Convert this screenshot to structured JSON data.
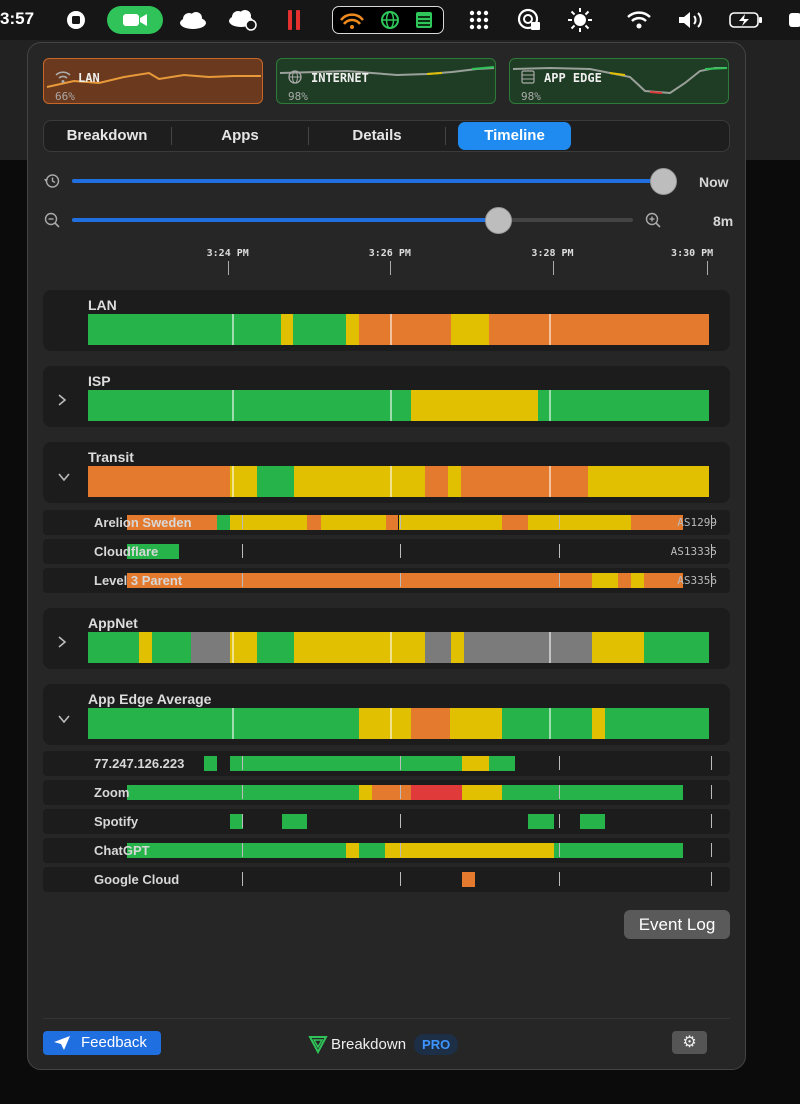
{
  "menubar": {
    "clock": "3:57"
  },
  "cards": [
    {
      "label": "LAN",
      "pct": "66%",
      "bg": "#6b3a1e",
      "border": "#c5672a",
      "icon": "wifi-off-icon"
    },
    {
      "label": "INTERNET",
      "pct": "98%",
      "bg": "#1f3d24",
      "border": "#2e7a3b",
      "icon": "globe-icon"
    },
    {
      "label": "APP EDGE",
      "pct": "98%",
      "bg": "#1f3d24",
      "border": "#2e7a3b",
      "icon": "server-icon"
    }
  ],
  "tabs": [
    "Breakdown",
    "Apps",
    "Details",
    "Timeline"
  ],
  "sliders": {
    "history_label": "Now",
    "zoom_label": "8m",
    "history_position": 0.99,
    "zoom_position": 0.76
  },
  "ticks": [
    "3:24 PM",
    "3:26 PM",
    "3:28 PM",
    "3:30 PM"
  ],
  "colors": {
    "green": "#26b34a",
    "yellow": "#e0c000",
    "orange": "#e47a2e",
    "red": "#e03a3a",
    "gray": "#7b7b7b"
  },
  "sections": [
    {
      "title": "LAN",
      "chevron": "",
      "segments": [
        [
          0,
          0.31,
          "green"
        ],
        [
          0.31,
          0.33,
          "yellow"
        ],
        [
          0.33,
          0.416,
          "green"
        ],
        [
          0.416,
          0.436,
          "yellow"
        ],
        [
          0.436,
          0.584,
          "orange"
        ],
        [
          0.584,
          0.645,
          "yellow"
        ],
        [
          0.645,
          1,
          "orange"
        ]
      ]
    },
    {
      "title": "ISP",
      "chevron": "›",
      "segments": [
        [
          0,
          0.52,
          "green"
        ],
        [
          0.52,
          0.725,
          "yellow"
        ],
        [
          0.725,
          1,
          "green"
        ]
      ]
    },
    {
      "title": "Transit",
      "chevron": "⌄",
      "segments": [
        [
          0,
          0.228,
          "orange"
        ],
        [
          0.228,
          0.272,
          "yellow"
        ],
        [
          0.272,
          0.332,
          "green"
        ],
        [
          0.332,
          0.542,
          "yellow"
        ],
        [
          0.542,
          0.58,
          "orange"
        ],
        [
          0.58,
          0.6,
          "yellow"
        ],
        [
          0.6,
          0.805,
          "orange"
        ],
        [
          0.805,
          1,
          "yellow"
        ]
      ]
    },
    {
      "title": "AppNet",
      "chevron": "›",
      "segments": [
        [
          0,
          0.082,
          "green"
        ],
        [
          0.082,
          0.103,
          "yellow"
        ],
        [
          0.103,
          0.166,
          "green"
        ],
        [
          0.166,
          0.228,
          "gray"
        ],
        [
          0.228,
          0.272,
          "yellow"
        ],
        [
          0.272,
          0.332,
          "green"
        ],
        [
          0.332,
          0.542,
          "yellow"
        ],
        [
          0.542,
          0.584,
          "gray"
        ],
        [
          0.584,
          0.605,
          "yellow"
        ],
        [
          0.605,
          0.812,
          "gray"
        ],
        [
          0.812,
          0.895,
          "yellow"
        ],
        [
          0.895,
          1,
          "green"
        ]
      ]
    },
    {
      "title": "App Edge Average",
      "chevron": "⌄",
      "segments": [
        [
          0,
          0.437,
          "green"
        ],
        [
          0.437,
          0.52,
          "yellow"
        ],
        [
          0.52,
          0.583,
          "orange"
        ],
        [
          0.583,
          0.667,
          "yellow"
        ],
        [
          0.667,
          0.812,
          "green"
        ],
        [
          0.812,
          0.833,
          "yellow"
        ],
        [
          0.833,
          1,
          "green"
        ]
      ]
    }
  ],
  "transit_rows": [
    {
      "name": "Arelion Sweden",
      "as": "AS1299",
      "segments": [
        [
          0.062,
          0.208,
          "orange"
        ],
        [
          0.208,
          0.228,
          "green"
        ],
        [
          0.228,
          0.353,
          "yellow"
        ],
        [
          0.353,
          0.375,
          "orange"
        ],
        [
          0.375,
          0.48,
          "yellow"
        ],
        [
          0.48,
          0.5,
          "orange"
        ],
        [
          0.5,
          0.667,
          "yellow"
        ],
        [
          0.667,
          0.708,
          "orange"
        ],
        [
          0.708,
          0.874,
          "yellow"
        ],
        [
          0.874,
          0.958,
          "orange"
        ]
      ]
    },
    {
      "name": "Cloudflare",
      "as": "AS13335",
      "segments": [
        [
          0.062,
          0.146,
          "green"
        ]
      ]
    },
    {
      "name": "Level 3 Parent",
      "as": "AS3356",
      "segments": [
        [
          0.062,
          0.812,
          "orange"
        ],
        [
          0.812,
          0.853,
          "yellow"
        ],
        [
          0.853,
          0.874,
          "orange"
        ],
        [
          0.874,
          0.895,
          "yellow"
        ],
        [
          0.895,
          0.958,
          "orange"
        ]
      ]
    }
  ],
  "app_rows": [
    {
      "name": "77.247.126.223",
      "segments": [
        [
          0.187,
          0.208,
          "green"
        ],
        [
          0.228,
          0.603,
          "green"
        ],
        [
          0.603,
          0.645,
          "yellow"
        ],
        [
          0.645,
          0.687,
          "green"
        ]
      ]
    },
    {
      "name": "Zoom",
      "segments": [
        [
          0.062,
          0.437,
          "green"
        ],
        [
          0.437,
          0.458,
          "yellow"
        ],
        [
          0.458,
          0.52,
          "orange"
        ],
        [
          0.52,
          0.603,
          "red"
        ],
        [
          0.603,
          0.667,
          "yellow"
        ],
        [
          0.667,
          0.958,
          "green"
        ]
      ]
    },
    {
      "name": "Spotify",
      "segments": [
        [
          0.228,
          0.25,
          "green"
        ],
        [
          0.312,
          0.353,
          "green"
        ],
        [
          0.708,
          0.75,
          "green"
        ],
        [
          0.792,
          0.833,
          "green"
        ]
      ]
    },
    {
      "name": "ChatGPT",
      "segments": [
        [
          0.062,
          0.416,
          "green"
        ],
        [
          0.416,
          0.437,
          "yellow"
        ],
        [
          0.437,
          0.478,
          "green"
        ],
        [
          0.478,
          0.75,
          "yellow"
        ],
        [
          0.75,
          0.958,
          "green"
        ]
      ]
    },
    {
      "name": "Google Cloud",
      "segments": [
        [
          0.603,
          0.624,
          "orange"
        ]
      ]
    }
  ],
  "event_log": "Event Log",
  "footer": {
    "feedback": "Feedback",
    "brand": "Breakdown",
    "pro": "PRO"
  }
}
